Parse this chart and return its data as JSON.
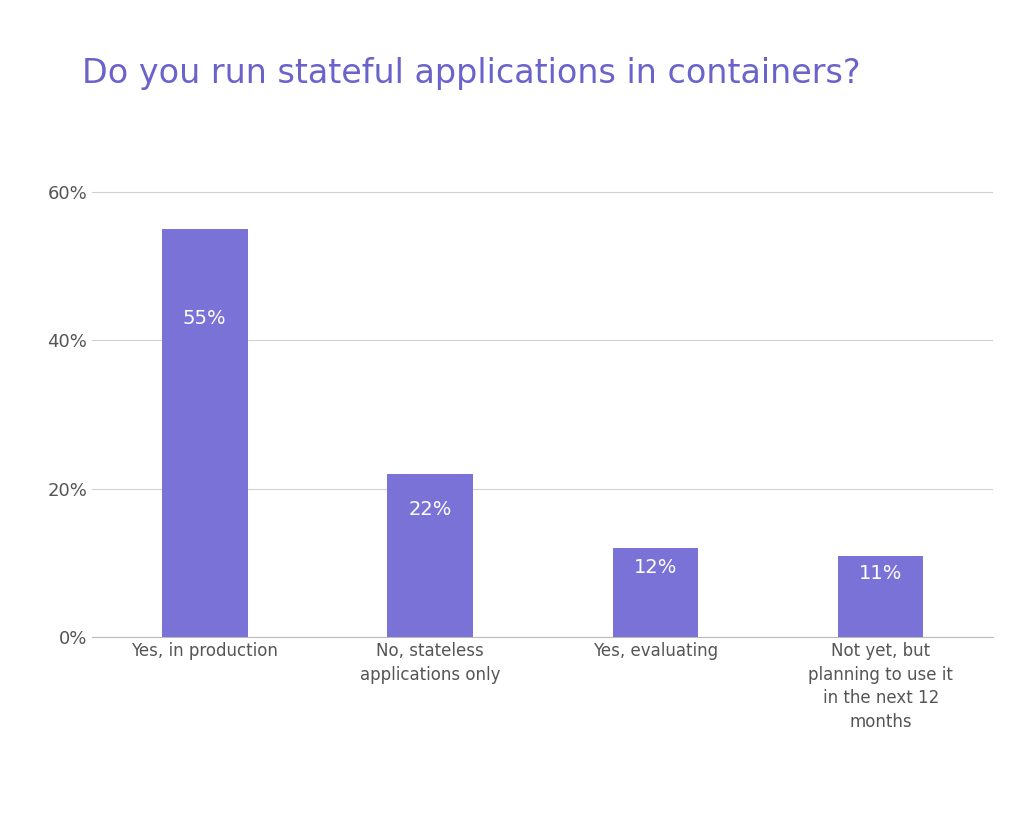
{
  "title": "Do you run stateful applications in containers?",
  "categories": [
    "Yes, in production",
    "No, stateless\napplications only",
    "Yes, evaluating",
    "Not yet, but\nplanning to use it\nin the next 12\nmonths"
  ],
  "values": [
    55,
    22,
    12,
    11
  ],
  "labels": [
    "55%",
    "22%",
    "12%",
    "11%"
  ],
  "bar_color": "#7B72D8",
  "background_color": "#ffffff",
  "title_color": "#6B63CC",
  "tick_label_color": "#555555",
  "bar_label_color": "#ffffff",
  "yticks": [
    0,
    20,
    40,
    60
  ],
  "ytick_labels": [
    "0%",
    "20%",
    "40%",
    "60%"
  ],
  "ylim": [
    0,
    66
  ],
  "title_fontsize": 24,
  "bar_label_fontsize": 14,
  "tick_fontsize": 13,
  "xlabel_fontsize": 12,
  "bar_width": 0.38
}
